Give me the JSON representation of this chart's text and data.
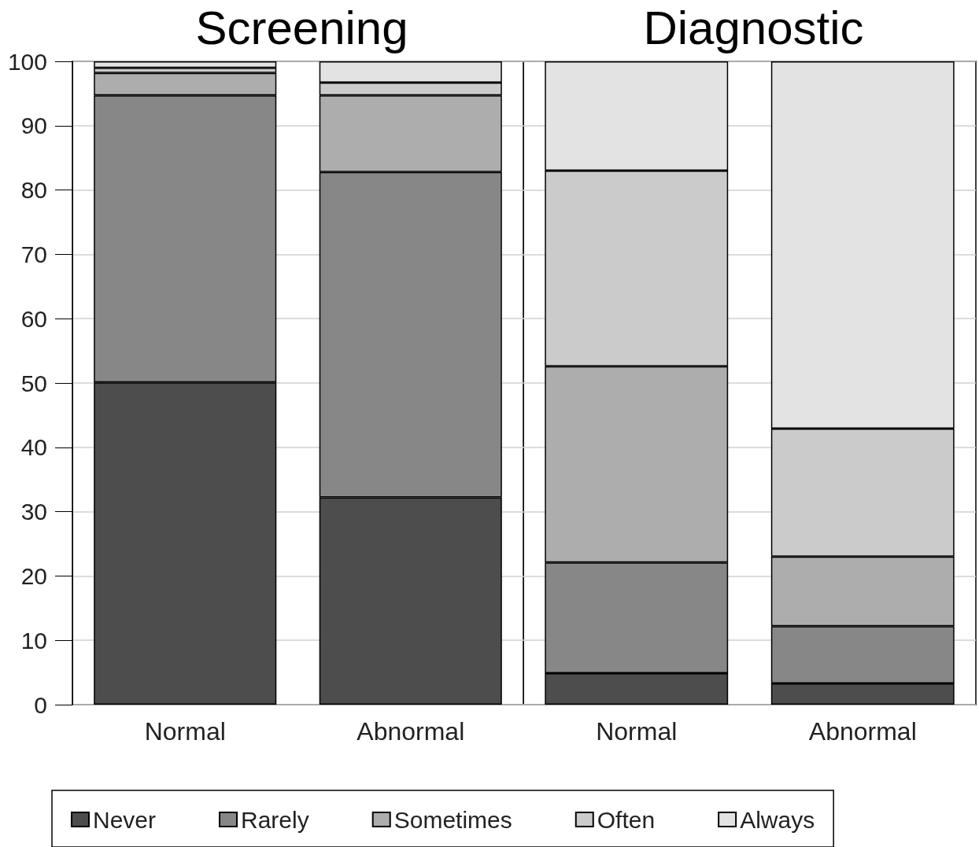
{
  "chart_data": [
    {
      "type": "bar",
      "title": "Screening",
      "categories": [
        "Normal",
        "Abnormal"
      ],
      "stacked": true,
      "ylim": [
        0,
        100
      ],
      "yticks": [
        0,
        10,
        20,
        30,
        40,
        50,
        60,
        70,
        80,
        90,
        100
      ],
      "grid": "y",
      "legend": "bottom",
      "series": [
        {
          "name": "Never",
          "color": "#4d4d4d",
          "values": [
            50.1,
            32.2
          ]
        },
        {
          "name": "Rarely",
          "color": "#878787",
          "values": [
            44.6,
            50.6
          ]
        },
        {
          "name": "Sometimes",
          "color": "#adadad",
          "values": [
            3.5,
            11.9
          ]
        },
        {
          "name": "Often",
          "color": "#cbcbcb",
          "values": [
            0.8,
            2.0
          ]
        },
        {
          "name": "Always",
          "color": "#e3e3e3",
          "values": [
            1.0,
            3.3
          ]
        }
      ]
    },
    {
      "type": "bar",
      "title": "Diagnostic",
      "categories": [
        "Normal",
        "Abnormal"
      ],
      "stacked": true,
      "ylim": [
        0,
        100
      ],
      "yticks": [
        0,
        10,
        20,
        30,
        40,
        50,
        60,
        70,
        80,
        90,
        100
      ],
      "grid": "y",
      "tick_labels": "x",
      "series": [
        {
          "color": "#4d4d4d",
          "values": [
            4.9,
            3.3
          ]
        },
        {
          "color": "#878787",
          "values": [
            17.2,
            8.9
          ]
        },
        {
          "color": "#adadad",
          "values": [
            30.5,
            10.8
          ]
        },
        {
          "color": "#cbcbcb",
          "values": [
            30.4,
            19.9
          ]
        },
        {
          "color": "#e3e3e3",
          "values": [
            17.0,
            57.1
          ]
        }
      ]
    }
  ]
}
